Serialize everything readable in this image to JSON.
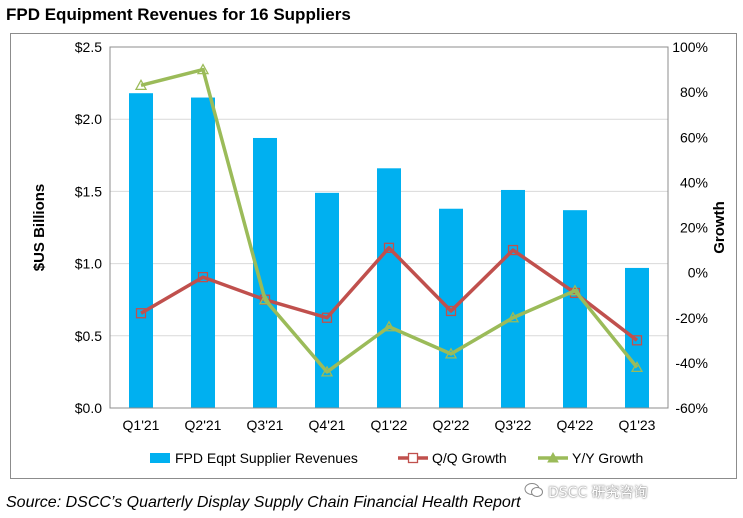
{
  "title": "FPD Equipment Revenues for 16 Suppliers",
  "source": "Source: DSCC’s Quarterly Display Supply Chain Financial Health Report",
  "watermark": "DSCC 研究咨询",
  "colors": {
    "bar": "#00B0F0",
    "qq": "#C0504D",
    "yy": "#9BBB59",
    "grid": "#d9d9d9",
    "frame": "#8c8c8c"
  },
  "chart_data": {
    "type": "bar",
    "categories": [
      "Q1'21",
      "Q2'21",
      "Q3'21",
      "Q4'21",
      "Q1'22",
      "Q2'22",
      "Q3'22",
      "Q4'22",
      "Q1'23"
    ],
    "series": [
      {
        "name": "FPD Eqpt Supplier Revenues",
        "type": "bar",
        "axis": "left",
        "values": [
          2.18,
          2.15,
          1.87,
          1.49,
          1.66,
          1.38,
          1.51,
          1.37,
          0.97
        ]
      },
      {
        "name": "Q/Q Growth",
        "type": "line",
        "axis": "right",
        "marker": "square",
        "values": [
          -18,
          -2,
          -12,
          -20,
          11,
          -17,
          10,
          -9,
          -30
        ]
      },
      {
        "name": "Y/Y Growth",
        "type": "line",
        "axis": "right",
        "marker": "triangle",
        "values": [
          83,
          90,
          -12,
          -44,
          -24,
          -36,
          -20,
          -8,
          -42
        ]
      }
    ],
    "ylabel": "$US Billions",
    "y2label": "Growth",
    "ylim": [
      0,
      2.5
    ],
    "yticks": [
      "$0.0",
      "$0.5",
      "$1.0",
      "$1.5",
      "$2.0",
      "$2.5"
    ],
    "y2lim": [
      -60,
      100
    ],
    "y2ticks": [
      "-60%",
      "-40%",
      "-20%",
      "0%",
      "20%",
      "40%",
      "60%",
      "80%",
      "100%"
    ],
    "grid": true,
    "legend": "bottom"
  }
}
